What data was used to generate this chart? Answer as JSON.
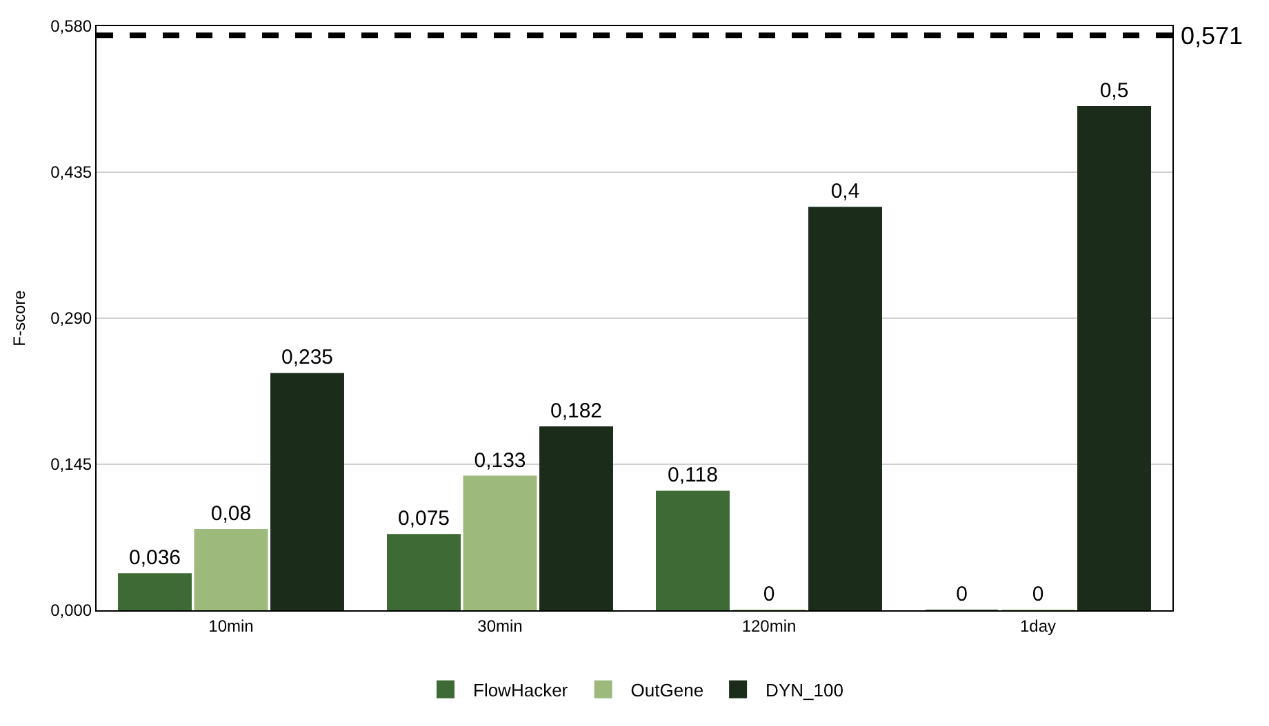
{
  "chart_data": {
    "type": "bar",
    "ylabel": "F-score",
    "categories": [
      "10min",
      "30min",
      "120min",
      "1day"
    ],
    "series": [
      {
        "name": "FlowHacker",
        "color": "#3e6a35",
        "values": [
          0.036,
          0.075,
          0.118,
          0
        ],
        "value_labels": [
          "0,036",
          "0,075",
          "0,118",
          "0"
        ]
      },
      {
        "name": "OutGene",
        "color": "#9dba7c",
        "values": [
          0.08,
          0.133,
          0,
          0
        ],
        "value_labels": [
          "0,08",
          "0,133",
          "0",
          "0"
        ]
      },
      {
        "name": "DYN_100",
        "color": "#1b2c1a",
        "values": [
          0.235,
          0.182,
          0.4,
          0.5
        ],
        "value_labels": [
          "0,235",
          "0,182",
          "0,4",
          "0,5"
        ]
      }
    ],
    "ylim": [
      0,
      0.58
    ],
    "yticks": [
      {
        "value": 0,
        "label": "0,000"
      },
      {
        "value": 0.145,
        "label": "0,145"
      },
      {
        "value": 0.29,
        "label": "0,290"
      },
      {
        "value": 0.435,
        "label": "0,435"
      },
      {
        "value": 0.58,
        "label": "0,580"
      }
    ],
    "ref_lines": [
      {
        "axis": "y",
        "value": 0.571,
        "label": "0,571",
        "color": "#000000",
        "line_style": "dashed"
      }
    ],
    "grid": "y",
    "legend": "bottom"
  }
}
